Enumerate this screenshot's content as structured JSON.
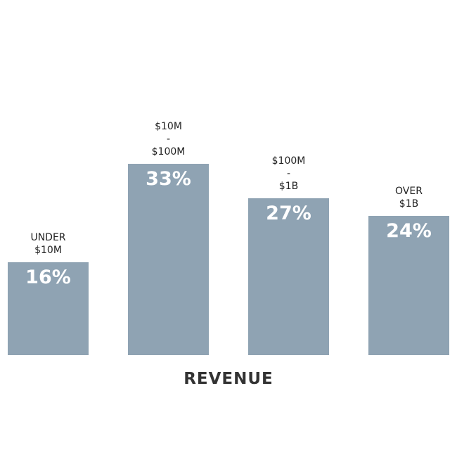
{
  "chart_data": {
    "type": "bar",
    "xlabel": "REVENUE",
    "categories": [
      "UNDER\n$10M",
      "$10M\n-\n$100M",
      "$100M\n-\n$1B",
      "OVER\n$1B"
    ],
    "values": [
      16,
      33,
      27,
      24
    ],
    "value_labels": [
      "16%",
      "33%",
      "27%",
      "24%"
    ],
    "color": "#8fa3b3",
    "ylim": [
      0,
      40
    ]
  }
}
